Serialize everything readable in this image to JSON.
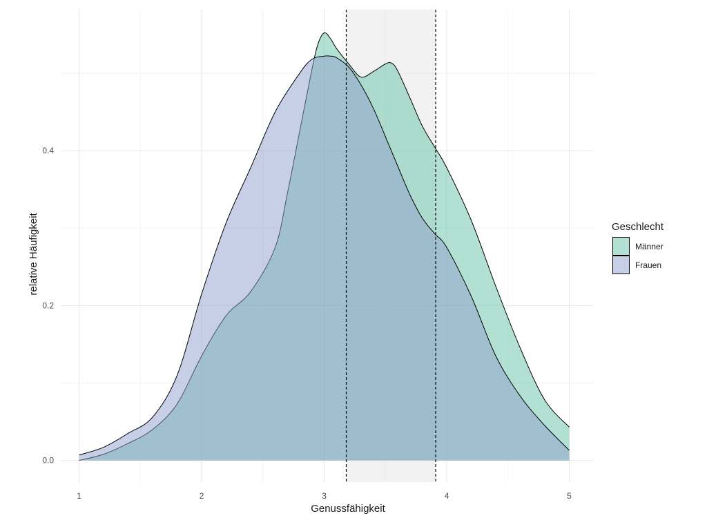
{
  "chart_data": {
    "type": "area",
    "title": "",
    "xlabel": "Genussfähigkeit",
    "ylabel": "relative Häufigkeit",
    "xlim": [
      0.85,
      5.2
    ],
    "ylim": [
      -0.028,
      0.582
    ],
    "x_ticks": [
      1,
      2,
      3,
      4,
      5
    ],
    "x_tick_labels": [
      "1",
      "2",
      "3",
      "4",
      "5"
    ],
    "y_ticks": [
      0.0,
      0.2,
      0.4
    ],
    "y_tick_labels": [
      "0.0",
      "0.2",
      "0.4"
    ],
    "grid": true,
    "vlines": [
      3.18,
      3.91
    ],
    "shaded_x_range": [
      3.18,
      3.91
    ],
    "legend": {
      "title": "Geschlecht",
      "position": "right",
      "entries": [
        "Männer",
        "Frauen"
      ]
    },
    "series": [
      {
        "name": "Männer",
        "color": "#66c2a5",
        "x": [
          1.0,
          1.2,
          1.4,
          1.6,
          1.8,
          2.0,
          2.2,
          2.4,
          2.6,
          2.7,
          2.8,
          2.9,
          2.95,
          3.0,
          3.05,
          3.1,
          3.2,
          3.3,
          3.4,
          3.5,
          3.55,
          3.6,
          3.7,
          3.8,
          3.9,
          4.0,
          4.2,
          4.4,
          4.6,
          4.8,
          5.0
        ],
        "y": [
          0.0,
          0.008,
          0.022,
          0.04,
          0.073,
          0.135,
          0.187,
          0.218,
          0.275,
          0.345,
          0.425,
          0.505,
          0.538,
          0.552,
          0.545,
          0.532,
          0.512,
          0.495,
          0.502,
          0.512,
          0.513,
          0.503,
          0.468,
          0.432,
          0.405,
          0.378,
          0.31,
          0.225,
          0.145,
          0.078,
          0.043
        ]
      },
      {
        "name": "Frauen",
        "color": "#8da0cb",
        "x": [
          1.0,
          1.2,
          1.4,
          1.6,
          1.8,
          2.0,
          2.2,
          2.4,
          2.6,
          2.8,
          2.9,
          3.0,
          3.05,
          3.1,
          3.2,
          3.3,
          3.4,
          3.5,
          3.6,
          3.7,
          3.8,
          3.9,
          4.0,
          4.2,
          4.4,
          4.6,
          4.8,
          5.0
        ],
        "y": [
          0.007,
          0.017,
          0.035,
          0.056,
          0.11,
          0.215,
          0.307,
          0.378,
          0.45,
          0.5,
          0.518,
          0.522,
          0.522,
          0.52,
          0.508,
          0.485,
          0.455,
          0.418,
          0.38,
          0.343,
          0.313,
          0.293,
          0.275,
          0.212,
          0.135,
          0.083,
          0.045,
          0.013
        ]
      }
    ]
  }
}
